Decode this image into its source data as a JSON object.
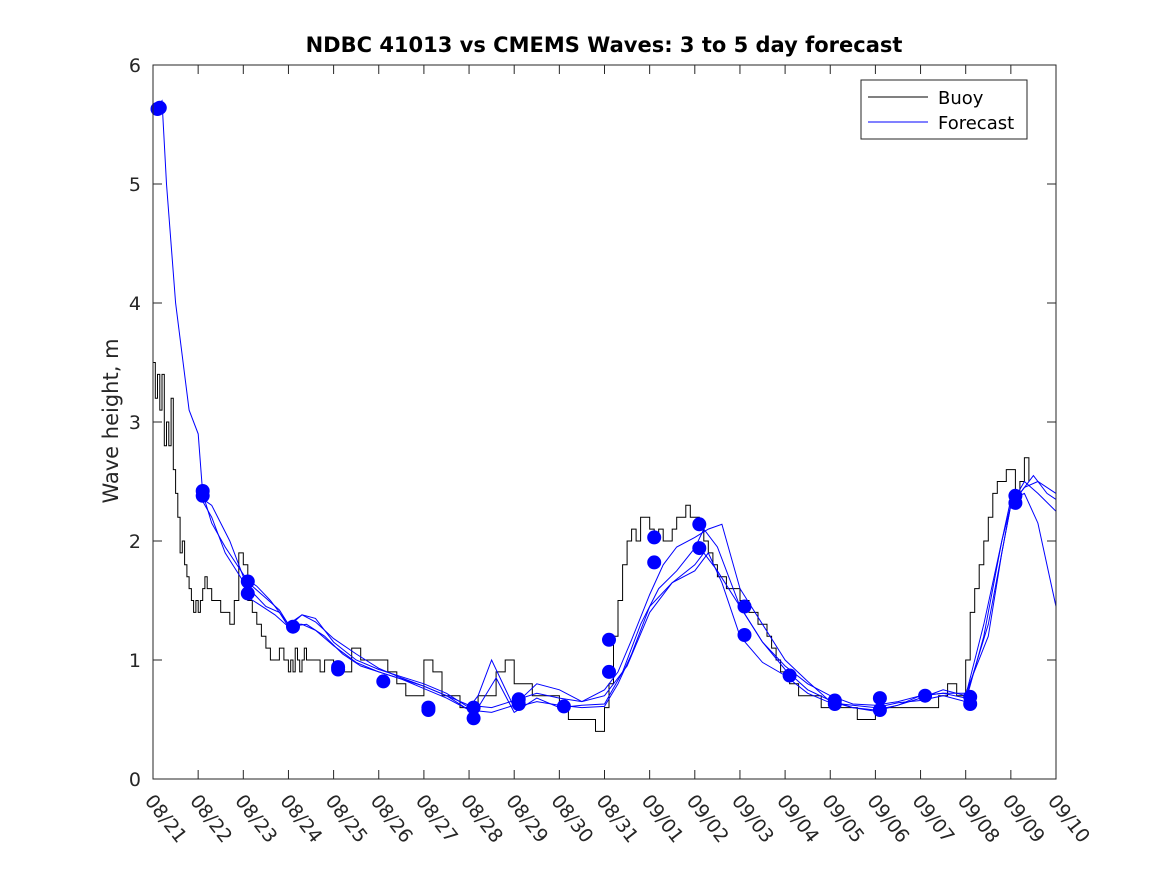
{
  "chart_data": {
    "type": "line",
    "title": "NDBC 41013 vs CMEMS Waves: 3 to 5 day forecast",
    "xlabel": "",
    "ylabel": "Wave height, m",
    "xlim": [
      0,
      20
    ],
    "ylim": [
      0,
      6
    ],
    "x_tick_labels": [
      "08/21",
      "08/22",
      "08/23",
      "08/24",
      "08/25",
      "08/26",
      "08/27",
      "08/28",
      "08/29",
      "08/30",
      "08/31",
      "09/01",
      "09/02",
      "09/03",
      "09/04",
      "09/05",
      "09/06",
      "09/07",
      "09/08",
      "09/09",
      "09/10"
    ],
    "y_ticks": [
      0,
      1,
      2,
      3,
      4,
      5,
      6
    ],
    "y_tick_labels": [
      "0",
      "1",
      "2",
      "3",
      "4",
      "5",
      "6"
    ],
    "grid": false,
    "legend": {
      "placement": "top-right",
      "entries": [
        "Buoy",
        "Forecast"
      ]
    },
    "colors": {
      "buoy": "#000000",
      "forecast": "#0000ff",
      "axis": "#262626"
    },
    "buoy": {
      "name": "Buoy",
      "x": [
        0,
        0.05,
        0.1,
        0.15,
        0.2,
        0.25,
        0.3,
        0.35,
        0.4,
        0.45,
        0.5,
        0.55,
        0.6,
        0.65,
        0.7,
        0.75,
        0.8,
        0.85,
        0.9,
        0.95,
        1.0,
        1.05,
        1.1,
        1.15,
        1.2,
        1.3,
        1.4,
        1.5,
        1.6,
        1.7,
        1.8,
        1.9,
        2.0,
        2.1,
        2.2,
        2.3,
        2.4,
        2.5,
        2.6,
        2.7,
        2.8,
        2.9,
        3.0,
        3.05,
        3.1,
        3.15,
        3.2,
        3.25,
        3.3,
        3.35,
        3.4,
        3.5,
        3.6,
        3.7,
        3.8,
        3.9,
        4.0,
        4.2,
        4.4,
        4.6,
        4.8,
        5.0,
        5.2,
        5.4,
        5.6,
        5.8,
        6.0,
        6.2,
        6.4,
        6.6,
        6.8,
        7.0,
        7.2,
        7.4,
        7.6,
        7.8,
        8.0,
        8.2,
        8.4,
        8.6,
        8.8,
        9.0,
        9.2,
        9.4,
        9.6,
        9.8,
        10.0,
        10.1,
        10.2,
        10.3,
        10.4,
        10.5,
        10.6,
        10.7,
        10.8,
        10.9,
        11.0,
        11.1,
        11.2,
        11.3,
        11.4,
        11.5,
        11.6,
        11.7,
        11.8,
        11.9,
        12.0,
        12.1,
        12.2,
        12.3,
        12.4,
        12.5,
        12.6,
        12.7,
        12.8,
        12.9,
        13.0,
        13.1,
        13.2,
        13.3,
        13.4,
        13.5,
        13.6,
        13.7,
        13.8,
        13.9,
        14.0,
        14.1,
        14.2,
        14.3,
        14.4,
        14.5,
        14.6,
        14.8,
        15.0,
        15.2,
        15.4,
        15.6,
        15.8,
        16.0,
        16.2,
        16.4,
        16.6,
        16.8,
        17.0,
        17.2,
        17.4,
        17.6,
        17.8,
        18.0,
        18.1,
        18.2,
        18.3,
        18.4,
        18.5,
        18.6,
        18.7,
        18.8,
        18.9,
        19.0,
        19.1,
        19.2,
        19.3,
        19.4
      ],
      "y": [
        3.5,
        3.2,
        3.4,
        3.1,
        3.4,
        2.8,
        3.0,
        2.8,
        3.2,
        2.6,
        2.4,
        2.2,
        1.9,
        2.0,
        1.8,
        1.7,
        1.6,
        1.5,
        1.4,
        1.5,
        1.4,
        1.5,
        1.6,
        1.7,
        1.6,
        1.5,
        1.5,
        1.4,
        1.4,
        1.3,
        1.5,
        1.9,
        1.8,
        1.5,
        1.4,
        1.3,
        1.2,
        1.1,
        1.0,
        1.0,
        1.1,
        1.0,
        0.9,
        1.0,
        0.9,
        1.1,
        1.0,
        0.9,
        1.0,
        1.1,
        1.0,
        1.0,
        1.0,
        0.9,
        1.0,
        1.0,
        0.9,
        0.9,
        1.1,
        1.0,
        1.0,
        1.0,
        0.9,
        0.8,
        0.7,
        0.7,
        1.0,
        0.9,
        0.7,
        0.7,
        0.6,
        0.6,
        0.7,
        0.7,
        0.9,
        1.0,
        0.8,
        0.8,
        0.7,
        0.7,
        0.7,
        0.6,
        0.5,
        0.5,
        0.5,
        0.4,
        0.6,
        0.8,
        1.2,
        1.5,
        1.8,
        2.0,
        2.1,
        2.0,
        2.2,
        2.2,
        2.1,
        2.0,
        2.1,
        2.0,
        2.0,
        2.1,
        2.2,
        2.2,
        2.3,
        2.2,
        2.2,
        2.1,
        2.0,
        1.9,
        1.8,
        1.7,
        1.7,
        1.6,
        1.6,
        1.6,
        1.5,
        1.5,
        1.4,
        1.4,
        1.3,
        1.3,
        1.2,
        1.1,
        1.0,
        0.9,
        0.9,
        0.8,
        0.8,
        0.7,
        0.7,
        0.7,
        0.7,
        0.6,
        0.6,
        0.6,
        0.6,
        0.5,
        0.5,
        0.6,
        0.6,
        0.6,
        0.6,
        0.6,
        0.6,
        0.6,
        0.7,
        0.8,
        0.7,
        1.0,
        1.4,
        1.6,
        1.8,
        2.0,
        2.2,
        2.4,
        2.5,
        2.5,
        2.6,
        2.6,
        2.4,
        2.5,
        2.7,
        2.5
      ]
    },
    "forecast_series": [
      {
        "name": "Forecast",
        "x": [
          0,
          0.1,
          0.2,
          0.3,
          0.5,
          0.8,
          1.0,
          1.1,
          1.3,
          1.6,
          2.0,
          2.2,
          2.5,
          2.8,
          3.0,
          3.3,
          3.6,
          4.0,
          4.5,
          5.0,
          5.5,
          6.0,
          6.5,
          7.0,
          7.5,
          8.0,
          8.5,
          9.0,
          9.5,
          10.0,
          10.5,
          11.0,
          11.5,
          12.0,
          12.2,
          12.5,
          13.0,
          13.5,
          14.0,
          14.5,
          15.0,
          15.5,
          16.0,
          16.5,
          17.0,
          17.5,
          18.0,
          18.5,
          18.8,
          19.0,
          19.2,
          19.5,
          19.8,
          20.0
        ],
        "y": [
          5.63,
          5.65,
          5.7,
          5.0,
          4.0,
          3.1,
          2.9,
          2.4,
          2.15,
          1.95,
          1.72,
          1.62,
          1.52,
          1.42,
          1.3,
          1.38,
          1.32,
          1.18,
          1.05,
          0.93,
          0.85,
          0.78,
          0.7,
          0.62,
          0.6,
          0.66,
          0.72,
          0.68,
          0.65,
          0.7,
          0.95,
          1.4,
          1.65,
          1.8,
          1.9,
          1.75,
          1.45,
          1.15,
          0.95,
          0.8,
          0.7,
          0.63,
          0.62,
          0.65,
          0.7,
          0.72,
          0.72,
          1.2,
          1.9,
          2.3,
          2.4,
          2.55,
          2.4,
          2.35
        ]
      },
      {
        "name": "Forecast",
        "x": [
          1.0,
          1.3,
          1.6,
          2.0,
          2.2,
          2.5,
          2.8,
          3.0,
          3.3,
          3.6,
          4.0,
          4.5,
          5.0,
          5.5,
          6.0,
          6.5,
          7.0,
          7.2,
          7.5,
          8.0,
          8.5,
          9.0,
          9.5,
          10.0,
          10.3,
          10.6,
          11.0,
          11.5,
          12.0,
          12.3,
          12.6,
          13.0,
          13.5,
          14.0,
          14.5,
          15.0,
          15.5,
          16.0,
          16.5,
          17.0,
          17.5,
          18.0,
          18.4,
          18.8,
          19.0,
          19.3,
          19.6,
          20.0
        ],
        "y": [
          2.4,
          2.2,
          1.9,
          1.66,
          1.57,
          1.45,
          1.4,
          1.28,
          1.38,
          1.35,
          1.15,
          1.0,
          0.92,
          0.86,
          0.8,
          0.72,
          0.6,
          0.7,
          1.0,
          0.6,
          0.65,
          0.62,
          0.6,
          0.61,
          0.8,
          1.05,
          1.45,
          1.65,
          1.75,
          1.9,
          1.65,
          1.2,
          0.98,
          0.87,
          0.72,
          0.64,
          0.62,
          0.6,
          0.64,
          0.66,
          0.7,
          0.65,
          1.2,
          2.0,
          2.3,
          2.5,
          2.4,
          2.25
        ]
      },
      {
        "name": "Forecast",
        "x": [
          1.0,
          1.3,
          1.7,
          2.0,
          2.3,
          2.6,
          3.0,
          3.3,
          3.6,
          4.0,
          4.5,
          5.0,
          5.5,
          6.0,
          6.5,
          7.0,
          7.5,
          8.0,
          8.5,
          9.0,
          9.5,
          10.0,
          10.3,
          10.6,
          11.0,
          11.3,
          11.6,
          12.0,
          12.3,
          12.6,
          13.0,
          13.5,
          14.0,
          14.5,
          15.0,
          15.5,
          16.0,
          16.5,
          17.0,
          17.5,
          18.0,
          18.4,
          18.8,
          19.0,
          19.3,
          19.6,
          20.0
        ],
        "y": [
          2.38,
          2.3,
          2.0,
          1.7,
          1.62,
          1.5,
          1.3,
          1.3,
          1.25,
          1.12,
          0.98,
          0.9,
          0.84,
          0.76,
          0.68,
          0.58,
          0.56,
          0.62,
          0.8,
          0.75,
          0.65,
          0.75,
          0.9,
          1.17,
          1.55,
          1.8,
          1.95,
          2.03,
          2.1,
          2.14,
          1.6,
          1.3,
          1.0,
          0.82,
          0.65,
          0.6,
          0.57,
          0.62,
          0.68,
          0.75,
          0.7,
          1.3,
          2.0,
          2.35,
          2.4,
          2.15,
          1.45
        ]
      },
      {
        "name": "Forecast",
        "x": [
          2.0,
          2.3,
          2.7,
          3.0,
          3.4,
          3.8,
          4.2,
          4.6,
          5.0,
          5.5,
          6.0,
          6.5,
          7.0,
          7.2,
          7.6,
          8.0,
          8.5,
          9.0,
          9.5,
          10.0,
          10.4,
          10.8,
          11.2,
          11.6,
          12.0,
          12.2,
          12.5,
          13.0,
          13.5,
          14.0,
          14.5,
          15.0,
          15.5,
          16.0,
          16.5,
          17.0,
          17.5,
          18.0,
          18.5,
          19.0,
          19.3,
          19.6,
          20.0
        ],
        "y": [
          1.55,
          1.48,
          1.38,
          1.28,
          1.3,
          1.2,
          1.05,
          0.95,
          0.9,
          0.84,
          0.78,
          0.7,
          0.58,
          0.6,
          0.85,
          0.56,
          0.68,
          0.6,
          0.62,
          0.63,
          0.9,
          1.3,
          1.6,
          1.75,
          1.94,
          2.1,
          1.95,
          1.45,
          1.15,
          0.92,
          0.75,
          0.66,
          0.6,
          0.58,
          0.62,
          0.7,
          0.72,
          0.68,
          1.3,
          2.3,
          2.45,
          2.5,
          2.4
        ]
      }
    ],
    "forecast_markers": {
      "x": [
        0.1,
        0.15,
        1.1,
        1.1,
        2.1,
        2.1,
        3.1,
        4.1,
        4.1,
        5.1,
        6.1,
        6.1,
        7.1,
        7.1,
        8.1,
        8.1,
        9.1,
        10.1,
        10.1,
        11.1,
        11.1,
        12.1,
        12.1,
        13.1,
        13.1,
        14.1,
        15.1,
        15.1,
        16.1,
        16.1,
        17.1,
        18.1,
        18.1,
        19.1,
        19.1
      ],
      "y": [
        5.63,
        5.64,
        2.42,
        2.38,
        1.66,
        1.56,
        1.28,
        0.94,
        0.92,
        0.82,
        0.6,
        0.58,
        0.6,
        0.51,
        0.67,
        0.63,
        0.61,
        1.17,
        0.9,
        2.03,
        1.82,
        2.14,
        1.94,
        1.45,
        1.21,
        0.87,
        0.66,
        0.63,
        0.68,
        0.58,
        0.7,
        0.69,
        0.63,
        2.38,
        2.32
      ]
    }
  }
}
